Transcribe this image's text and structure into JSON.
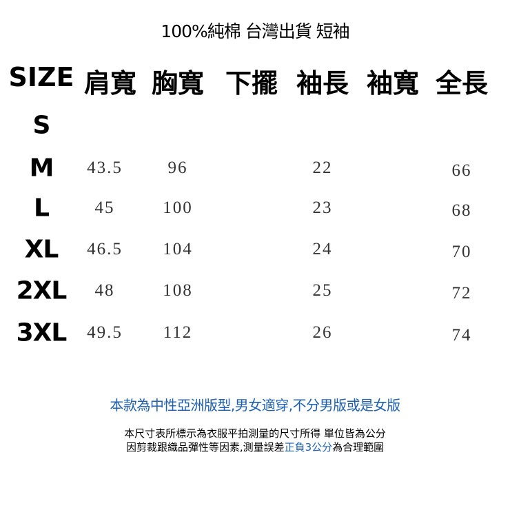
{
  "title": "100%純棉 台灣出貨 短袖",
  "headers": [
    "SIZE",
    "肩寬",
    "胸寬",
    "下擺",
    "袖長",
    "袖寬",
    "全長"
  ],
  "rows": [
    {
      "size": "S",
      "values": [
        "",
        "",
        "",
        "",
        "",
        ""
      ]
    },
    {
      "size": "M",
      "values": [
        "43.5",
        "96",
        "",
        "22",
        "",
        "66"
      ]
    },
    {
      "size": "L",
      "values": [
        "45",
        "100",
        "",
        "23",
        "",
        "68"
      ]
    },
    {
      "size": "XL",
      "values": [
        "46.5",
        "104",
        "",
        "24",
        "",
        "70"
      ]
    },
    {
      "size": "2XL",
      "values": [
        "48",
        "108",
        "",
        "25",
        "",
        "72"
      ]
    },
    {
      "size": "3XL",
      "values": [
        "49.5",
        "112",
        "",
        "26",
        "",
        "74"
      ]
    }
  ],
  "notes": {
    "fit": "本款為中性亞洲版型,男女適穿,不分男版或是女版",
    "line1": "本尺寸表所標示為衣服平拍測量的尺寸所得 單位皆為公分",
    "line2_a": "因剪裁跟織品彈性等因素,測量誤差",
    "line2_highlight": "正負3公分",
    "line2_b": "為合理範圍"
  },
  "colors": {
    "accent": "#1f5fb0",
    "text": "#000000",
    "values": "#333333"
  }
}
